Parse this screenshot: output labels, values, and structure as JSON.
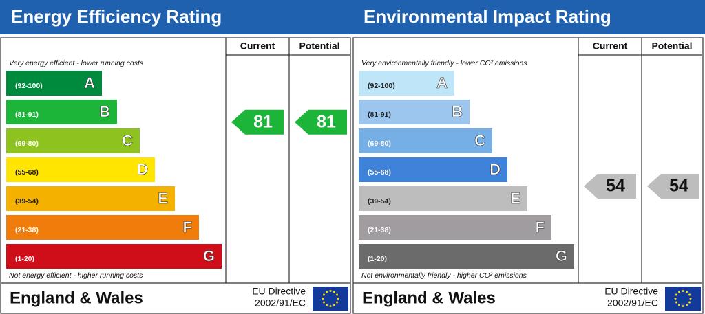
{
  "chart_data": [
    {
      "type": "rating",
      "title": "Energy Efficiency Rating",
      "top_note": "Very energy efficient - lower running costs",
      "bottom_note": "Not energy efficient - higher running costs",
      "columns": [
        "Current",
        "Potential"
      ],
      "bands": [
        {
          "range": "(92-100)",
          "letter": "A",
          "color": "#008a3e",
          "text_color": "#fff"
        },
        {
          "range": "(81-91)",
          "letter": "B",
          "color": "#1db43a",
          "text_color": "#fff"
        },
        {
          "range": "(69-80)",
          "letter": "C",
          "color": "#8ec31f",
          "text_color": "#fff"
        },
        {
          "range": "(55-68)",
          "letter": "D",
          "color": "#ffe500",
          "text_color": "#222"
        },
        {
          "range": "(39-54)",
          "letter": "E",
          "color": "#f5b100",
          "text_color": "#222"
        },
        {
          "range": "(21-38)",
          "letter": "F",
          "color": "#ef7c0b",
          "text_color": "#fff"
        },
        {
          "range": "(1-20)",
          "letter": "G",
          "color": "#cf0e19",
          "text_color": "#fff"
        }
      ],
      "series": [
        {
          "name": "Current",
          "values": [
            81
          ],
          "color": "#1db43a"
        },
        {
          "name": "Potential",
          "values": [
            81
          ],
          "color": "#1db43a"
        }
      ],
      "footer": "England & Wales",
      "directive": [
        "EU Directive",
        "2002/91/EC"
      ]
    },
    {
      "type": "rating",
      "title": "Environmental Impact Rating",
      "top_note": "Very environmentally friendly - lower CO² emissions",
      "bottom_note": "Not environmentally friendly - higher CO² emissions",
      "columns": [
        "Current",
        "Potential"
      ],
      "bands": [
        {
          "range": "(92-100)",
          "letter": "A",
          "color": "#bfe5f8",
          "text_color": "#222"
        },
        {
          "range": "(81-91)",
          "letter": "B",
          "color": "#9dc6ee",
          "text_color": "#222"
        },
        {
          "range": "(69-80)",
          "letter": "C",
          "color": "#76aee6",
          "text_color": "#fff"
        },
        {
          "range": "(55-68)",
          "letter": "D",
          "color": "#3f82da",
          "text_color": "#fff"
        },
        {
          "range": "(39-54)",
          "letter": "E",
          "color": "#bdbdbd",
          "text_color": "#222"
        },
        {
          "range": "(21-38)",
          "letter": "F",
          "color": "#a09ca0",
          "text_color": "#fff"
        },
        {
          "range": "(1-20)",
          "letter": "G",
          "color": "#6b6b6b",
          "text_color": "#fff"
        }
      ],
      "series": [
        {
          "name": "Current",
          "values": [
            54
          ],
          "color": "#bdbdbd"
        },
        {
          "name": "Potential",
          "values": [
            54
          ],
          "color": "#bdbdbd"
        }
      ],
      "footer": "England & Wales",
      "directive": [
        "EU Directive",
        "2002/91/EC"
      ]
    }
  ]
}
